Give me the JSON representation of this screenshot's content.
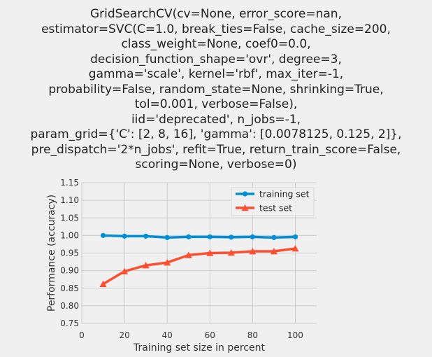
{
  "title_lines": [
    "GridSearchCV(cv=None, error_score=nan,",
    "estimator=SVC(C=1.0, break_ties=False, cache_size=200,",
    "class_weight=None, coef0=0.0,",
    "decision_function_shape='ovr', degree=3,",
    "gamma='scale', kernel='rbf', max_iter=-1,",
    "probability=False, random_state=None, shrinking=True,",
    "tol=0.001, verbose=False),",
    "iid='deprecated', n_jobs=-1,",
    "param_grid={'C': [2, 8, 16], 'gamma': [0.0078125, 0.125, 2]},",
    "pre_dispatch='2*n_jobs', refit=True, return_train_score=False,",
    "scoring=None, verbose=0)"
  ],
  "colors": {
    "background": "#f0f0f0",
    "grid": "#cbcbcb",
    "training": "#008fd5",
    "test": "#fc4f30"
  },
  "chart_data": {
    "type": "line",
    "xlabel": "Training set size in percent",
    "ylabel": "Performance (accuracy)",
    "xlim": [
      0,
      110
    ],
    "ylim": [
      0.75,
      1.15
    ],
    "xticks": [
      0,
      20,
      40,
      60,
      80,
      100
    ],
    "yticks": [
      0.75,
      0.8,
      0.85,
      0.9,
      0.95,
      1.0,
      1.05,
      1.1,
      1.15
    ],
    "grid": true,
    "legend_position": "top-right",
    "x": [
      10,
      20,
      30,
      40,
      50,
      60,
      70,
      80,
      90,
      100
    ],
    "series": [
      {
        "name": "training set",
        "marker": "circle",
        "values": [
          1.0,
          0.998,
          0.998,
          0.994,
          0.996,
          0.996,
          0.995,
          0.996,
          0.994,
          0.996
        ]
      },
      {
        "name": "test set",
        "marker": "triangle",
        "values": [
          0.862,
          0.898,
          0.915,
          0.923,
          0.944,
          0.95,
          0.951,
          0.955,
          0.955,
          0.963
        ]
      }
    ]
  }
}
